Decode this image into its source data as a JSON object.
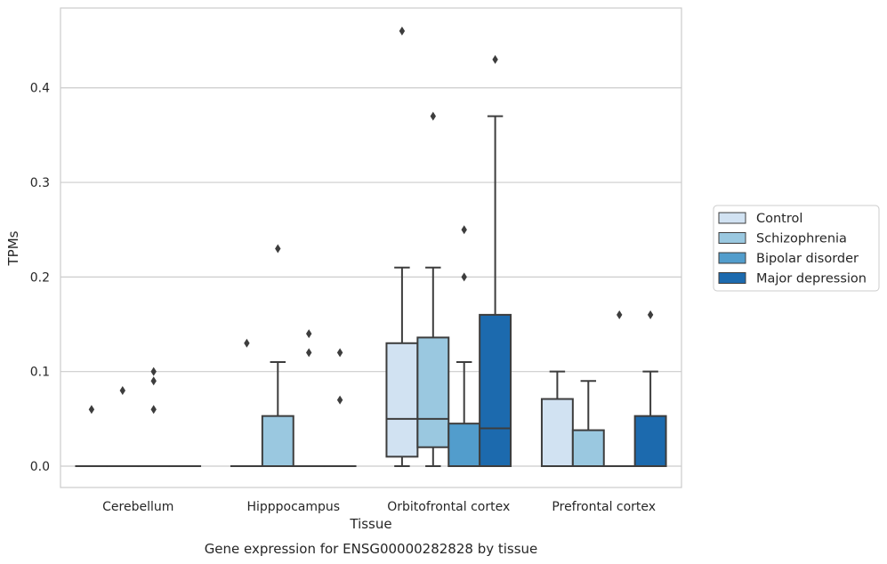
{
  "caption": "Gene expression for ENSG00000282828 by tissue",
  "chart_data": {
    "type": "box",
    "xlabel": "Tissue",
    "ylabel": "TPMs",
    "ylim": [
      -0.022,
      0.485
    ],
    "yticks": [
      0.0,
      0.1,
      0.2,
      0.3,
      0.4
    ],
    "ytick_labels": [
      "0.0",
      "0.1",
      "0.2",
      "0.3",
      "0.4"
    ],
    "grid": "horizontal",
    "legend_position": "right",
    "categories": [
      "Cerebellum",
      "Hipppocampus",
      "Orbitofrontal cortex",
      "Prefrontal cortex"
    ],
    "series": [
      {
        "name": "Control",
        "color": "#d1e2f2",
        "boxes": [
          {
            "q1": 0,
            "median": 0,
            "q3": 0,
            "whisker_low": 0,
            "whisker_high": 0,
            "outliers": [
              0.06
            ]
          },
          {
            "q1": 0,
            "median": 0,
            "q3": 0,
            "whisker_low": 0,
            "whisker_high": 0,
            "outliers": [
              0.13
            ]
          },
          {
            "q1": 0.01,
            "median": 0.05,
            "q3": 0.13,
            "whisker_low": 0,
            "whisker_high": 0.21,
            "outliers": [
              0.46
            ]
          },
          {
            "q1": 0,
            "median": 0,
            "q3": 0.071,
            "whisker_low": 0,
            "whisker_high": 0.1,
            "outliers": []
          }
        ]
      },
      {
        "name": "Schizophrenia",
        "color": "#9ac8e0",
        "boxes": [
          {
            "q1": 0,
            "median": 0,
            "q3": 0,
            "whisker_low": 0,
            "whisker_high": 0,
            "outliers": [
              0.08
            ]
          },
          {
            "q1": 0,
            "median": 0,
            "q3": 0.053,
            "whisker_low": 0,
            "whisker_high": 0.11,
            "outliers": [
              0.23
            ]
          },
          {
            "q1": 0.02,
            "median": 0.05,
            "q3": 0.136,
            "whisker_low": 0,
            "whisker_high": 0.21,
            "outliers": [
              0.37
            ]
          },
          {
            "q1": 0,
            "median": 0,
            "q3": 0.038,
            "whisker_low": 0,
            "whisker_high": 0.09,
            "outliers": []
          }
        ]
      },
      {
        "name": "Bipolar disorder",
        "color": "#529dcc",
        "boxes": [
          {
            "q1": 0,
            "median": 0,
            "q3": 0,
            "whisker_low": 0,
            "whisker_high": 0,
            "outliers": [
              0.06,
              0.09,
              0.1
            ]
          },
          {
            "q1": 0,
            "median": 0,
            "q3": 0,
            "whisker_low": 0,
            "whisker_high": 0,
            "outliers": [
              0.12,
              0.14
            ]
          },
          {
            "q1": 0,
            "median": 0,
            "q3": 0.045,
            "whisker_low": 0,
            "whisker_high": 0.11,
            "outliers": [
              0.2,
              0.25
            ]
          },
          {
            "q1": 0,
            "median": 0,
            "q3": 0,
            "whisker_low": 0,
            "whisker_high": 0,
            "outliers": [
              0.16
            ]
          }
        ]
      },
      {
        "name": "Major depression",
        "color": "#1c6aae",
        "boxes": [
          {
            "q1": 0,
            "median": 0,
            "q3": 0,
            "whisker_low": 0,
            "whisker_high": 0,
            "outliers": []
          },
          {
            "q1": 0,
            "median": 0,
            "q3": 0,
            "whisker_low": 0,
            "whisker_high": 0,
            "outliers": [
              0.07,
              0.12
            ]
          },
          {
            "q1": 0,
            "median": 0.04,
            "q3": 0.16,
            "whisker_low": 0,
            "whisker_high": 0.37,
            "outliers": [
              0.43
            ]
          },
          {
            "q1": 0,
            "median": 0,
            "q3": 0.053,
            "whisker_low": 0,
            "whisker_high": 0.1,
            "outliers": [
              0.16
            ]
          }
        ]
      }
    ]
  }
}
